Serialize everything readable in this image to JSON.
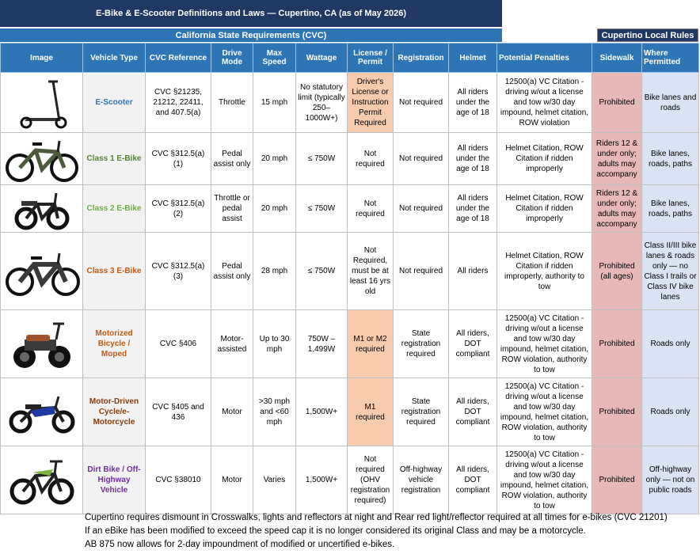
{
  "title": "E-Bike & E-Scooter Definitions and Laws — Cupertino, CA (as of May 2026)",
  "state_header": "California State Requirements (CVC)",
  "local_header": "Cupertino Local Rules",
  "columns": [
    "Image",
    "Vehicle Type",
    "CVC Reference",
    "Drive Mode",
    "Max Speed",
    "Wattage",
    "License / Permit",
    "Registration",
    "Helmet",
    "Potential Penalties",
    "Sidewalk",
    "Where Permitted"
  ],
  "rows": [
    {
      "vehicle": "E-Scooter",
      "color": "#2e75b6",
      "icon": "e-scooter-icon",
      "cvc": "CVC §21235, 21212, 22411, and 407.5(a)",
      "drive": "Throttle",
      "speed": "15 mph",
      "watt": "No statutory limit (typically 250–1000W+)",
      "license": "Driver's License or Instruction Permit Required",
      "reg": "Not required",
      "helmet": "All riders under the age of 18",
      "penalties": "12500(a) VC Citation - driving w/out a license and tow w/30 day impound, helmet citation, ROW violation",
      "sidewalk": "Prohibited",
      "where": "Bike lanes and roads"
    },
    {
      "vehicle": "Class 1 E-Bike",
      "color": "#548235",
      "icon": "class-1-ebike-icon",
      "cvc": "CVC §312.5(a)(1)",
      "drive": "Pedal assist only",
      "speed": "20 mph",
      "watt": "≤ 750W",
      "license": "Not required",
      "reg": "Not required",
      "helmet": "All riders under the age of 18",
      "penalties": "Helmet Citation, ROW Citation if ridden improperly",
      "sidewalk": "Riders 12 & under only; adults may accompany",
      "where": "Bike lanes, roads, paths"
    },
    {
      "vehicle": "Class 2 E-Bike",
      "color": "#70ad47",
      "icon": "class-2-ebike-icon",
      "cvc": "CVC §312.5(a)(2)",
      "drive": "Throttle or pedal assist",
      "speed": "20 mph",
      "watt": "≤ 750W",
      "license": "Not required",
      "reg": "Not required",
      "helmet": "All riders under the age of 18",
      "penalties": "Helmet Citation, ROW Citation if ridden improperly",
      "sidewalk": "Riders 12 & under only; adults may accompany",
      "where": "Bike lanes, roads, paths"
    },
    {
      "vehicle": "Class 3 E-Bike",
      "color": "#c55a11",
      "icon": "class-3-ebike-icon",
      "cvc": "CVC §312.5(a)(3)",
      "drive": "Pedal assist only",
      "speed": "28 mph",
      "watt": "≤ 750W",
      "license": "Not Required, must be at least 16 yrs old",
      "reg": "Not required",
      "helmet": "All riders",
      "penalties": "Helmet Citation, ROW Citation if ridden improperly, authority to tow",
      "sidewalk": "Prohibited (all ages)",
      "where": "Class II/III bike lanes & roads only — no Class I trails or Class IV bike lanes"
    },
    {
      "vehicle": "Motorized Bicycle / Moped",
      "color": "#c55a11",
      "icon": "moped-icon",
      "cvc": "CVC §406",
      "drive": "Motor-assisted",
      "speed": "Up to 30 mph",
      "watt": "750W – 1,499W",
      "license": "M1 or M2 required",
      "reg": "State registration required",
      "helmet": "All riders, DOT compliant",
      "penalties": "12500(a) VC Citation - driving w/out a license and tow w/30 day impound, helmet citation, ROW violation, authority to tow",
      "sidewalk": "Prohibited",
      "where": "Roads only"
    },
    {
      "vehicle": "Motor-Driven Cycle/e-Motorcycle",
      "color": "#833c0b",
      "icon": "motorcycle-icon",
      "cvc": "CVC §405 and 436",
      "drive": "Motor",
      "speed": ">30 mph and <60 mph",
      "watt": "1,500W+",
      "license": "M1 required",
      "reg": "State registration required",
      "helmet": "All riders, DOT compliant",
      "penalties": "12500(a) VC Citation - driving w/out a license and tow w/30 day impound, helmet citation, ROW violation, authority to tow",
      "sidewalk": "Prohibited",
      "where": "Roads only"
    },
    {
      "vehicle": "Dirt Bike / Off-Highway Vehicle",
      "color": "#7030a0",
      "icon": "dirt-bike-icon",
      "cvc": "CVC §38010",
      "drive": "Motor",
      "speed": "Varies",
      "watt": "1,500W+",
      "license": "Not required (OHV registration required)",
      "reg": "Off-highway vehicle registration",
      "helmet": "All riders, DOT compliant",
      "penalties": "12500(a) VC Citation - driving w/out a license and tow w/30 day impound, helmet citation, ROW violation, authority to tow",
      "sidewalk": "Prohibited",
      "where": "Off-highway only — not on public roads"
    }
  ],
  "notes": [
    "Cupertino requires dismount in Crosswalks, lights and reflectors at night and Rear red light/reflector required at all times for e-bikes (CVC 21201)",
    "If an eBike has been modified to exceed the speed cap it is no longer considered its original Class and may be a motorcycle.",
    "AB 875 now allows for 2-day impoundment of modified or uncertified e-bikes."
  ]
}
